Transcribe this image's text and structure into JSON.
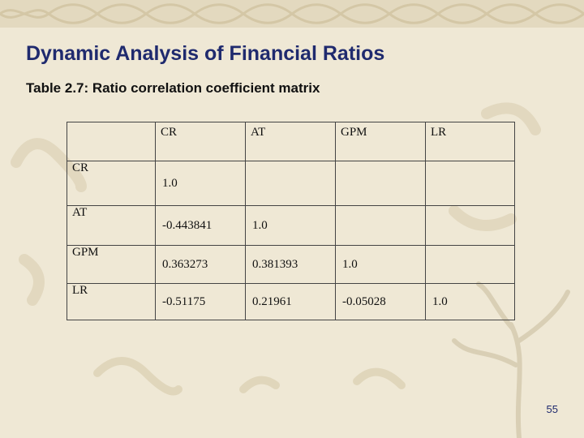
{
  "slide": {
    "title": "Dynamic Analysis of Financial Ratios",
    "subtitle": "Table 2.7: Ratio correlation coefficient matrix",
    "page_number": "55"
  },
  "table": {
    "headers": [
      "",
      "CR",
      "AT",
      "GPM",
      "LR"
    ],
    "rows": [
      {
        "label": "CR",
        "values": [
          "1.0",
          "",
          "",
          ""
        ]
      },
      {
        "label": "AT",
        "values": [
          "-0.443841",
          "1.0",
          "",
          ""
        ]
      },
      {
        "label": "GPM",
        "values": [
          "0.363273",
          "0.381393",
          "1.0",
          ""
        ]
      },
      {
        "label": "LR",
        "values": [
          "-0.51175",
          "0.21961",
          "-0.05028",
          "1.0"
        ]
      }
    ]
  }
}
